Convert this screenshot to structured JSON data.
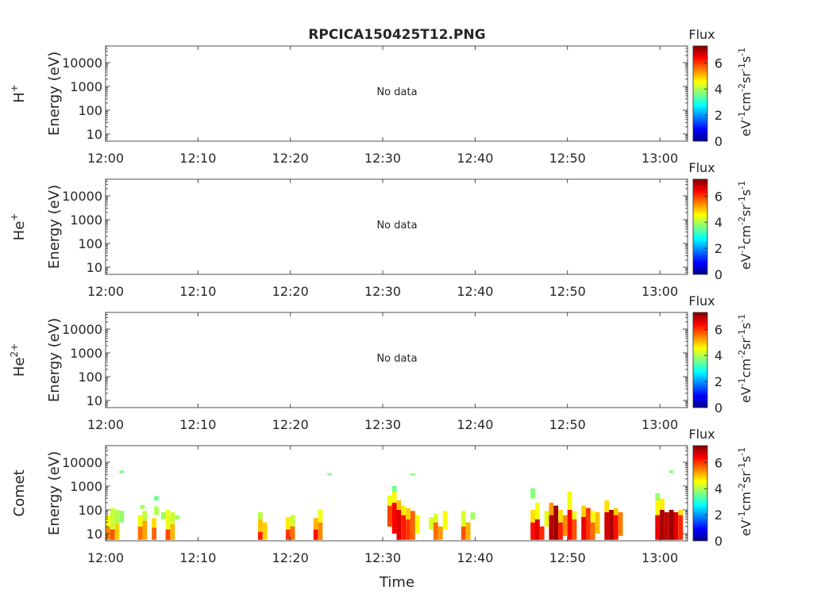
{
  "title": "RPCICA150425T12.PNG",
  "chart_data": [
    {
      "type": "heatmap",
      "panel": "H+",
      "ylabel_species": "H",
      "ylabel_charge": "+",
      "ylabel": "Energy (eV)",
      "yscale": "log",
      "ylim": [
        5,
        50000
      ],
      "yticks": [
        10,
        100,
        1000,
        10000
      ],
      "yticklabels": [
        "10",
        "100",
        "1000",
        "10000"
      ],
      "xlim": [
        "12:00",
        "13:03"
      ],
      "xticklabels": [
        "12:00",
        "12:10",
        "12:20",
        "12:30",
        "12:40",
        "12:50",
        "13:00"
      ],
      "message": "No data",
      "colorbar": {
        "label": "Flux",
        "units": "eV-1cm-2sr-1s-1",
        "range": [
          0,
          7.3
        ],
        "ticklabels": [
          "0",
          "2",
          "4",
          "6"
        ]
      },
      "cells": []
    },
    {
      "type": "heatmap",
      "panel": "He+",
      "ylabel_species": "He",
      "ylabel_charge": "+",
      "ylabel": "Energy (eV)",
      "yscale": "log",
      "ylim": [
        5,
        50000
      ],
      "yticks": [
        10,
        100,
        1000,
        10000
      ],
      "yticklabels": [
        "10",
        "100",
        "1000",
        "10000"
      ],
      "xlim": [
        "12:00",
        "13:03"
      ],
      "xticklabels": [
        "12:00",
        "12:10",
        "12:20",
        "12:30",
        "12:40",
        "12:50",
        "13:00"
      ],
      "message": "No data",
      "colorbar": {
        "label": "Flux",
        "units": "eV-1cm-2sr-1s-1",
        "range": [
          0,
          7.3
        ],
        "ticklabels": [
          "0",
          "2",
          "4",
          "6"
        ]
      },
      "cells": []
    },
    {
      "type": "heatmap",
      "panel": "He2+",
      "ylabel_species": "He",
      "ylabel_charge": "2+",
      "ylabel": "Energy (eV)",
      "yscale": "log",
      "ylim": [
        5,
        50000
      ],
      "yticks": [
        10,
        100,
        1000,
        10000
      ],
      "yticklabels": [
        "10",
        "100",
        "1000",
        "10000"
      ],
      "xlim": [
        "12:00",
        "13:03"
      ],
      "xticklabels": [
        "12:00",
        "12:10",
        "12:20",
        "12:30",
        "12:40",
        "12:50",
        "13:00"
      ],
      "message": "No data",
      "colorbar": {
        "label": "Flux",
        "units": "eV-1cm-2sr-1s-1",
        "range": [
          0,
          7.3
        ],
        "ticklabels": [
          "0",
          "2",
          "4",
          "6"
        ]
      },
      "cells": []
    },
    {
      "type": "heatmap",
      "panel": "Comet",
      "ylabel_species": "Comet",
      "ylabel_charge": "",
      "ylabel": "Energy (eV)",
      "xlabel": "Time",
      "yscale": "log",
      "ylim": [
        5,
        50000
      ],
      "yticks": [
        10,
        100,
        1000,
        10000
      ],
      "yticklabels": [
        "10",
        "100",
        "1000",
        "10000"
      ],
      "xlim": [
        "12:00",
        "13:03"
      ],
      "xticklabels": [
        "12:00",
        "12:10",
        "12:20",
        "12:30",
        "12:40",
        "12:50",
        "13:00"
      ],
      "message": "",
      "colorbar": {
        "label": "Flux",
        "units": "eV-1cm-2sr-1s-1",
        "range": [
          0,
          7.3
        ],
        "ticklabels": [
          "0",
          "2",
          "4",
          "6"
        ]
      },
      "cells": [
        {
          "t0": "12:00",
          "t1": "12:00:30",
          "e0": 5.5,
          "e1": 20,
          "v": 5.4
        },
        {
          "t0": "12:00",
          "t1": "12:00:30",
          "e0": 20,
          "e1": 60,
          "v": 4.6
        },
        {
          "t0": "12:00:30",
          "t1": "12:01",
          "e0": 5.5,
          "e1": 15,
          "v": 5.8
        },
        {
          "t0": "12:00:30",
          "t1": "12:01",
          "e0": 15,
          "e1": 120,
          "v": 4.2
        },
        {
          "t0": "12:01",
          "t1": "12:01:30",
          "e0": 5.5,
          "e1": 25,
          "v": 4.9
        },
        {
          "t0": "12:01",
          "t1": "12:01:30",
          "e0": 25,
          "e1": 100,
          "v": 4.0
        },
        {
          "t0": "12:01:30",
          "t1": "12:02",
          "e0": 30,
          "e1": 90,
          "v": 3.8
        },
        {
          "t0": "12:01:30",
          "t1": "12:02",
          "e0": 3500,
          "e1": 4500,
          "v": 3.6
        },
        {
          "t0": "12:03:30",
          "t1": "12:04",
          "e0": 5.5,
          "e1": 20,
          "v": 5.6
        },
        {
          "t0": "12:03:30",
          "t1": "12:04",
          "e0": 20,
          "e1": 60,
          "v": 4.5
        },
        {
          "t0": "12:04",
          "t1": "12:04:30",
          "e0": 5.5,
          "e1": 35,
          "v": 5.2
        },
        {
          "t0": "12:04",
          "t1": "12:04:30",
          "e0": 35,
          "e1": 90,
          "v": 4.1
        },
        {
          "t0": "12:03:45",
          "t1": "12:04:15",
          "e0": 110,
          "e1": 160,
          "v": 3.9
        },
        {
          "t0": "12:05",
          "t1": "12:05:30",
          "e0": 5.5,
          "e1": 18,
          "v": 5.7
        },
        {
          "t0": "12:05",
          "t1": "12:05:30",
          "e0": 18,
          "e1": 45,
          "v": 4.8
        },
        {
          "t0": "12:05:15",
          "t1": "12:05:45",
          "e0": 60,
          "e1": 140,
          "v": 4.0
        },
        {
          "t0": "12:05:15",
          "t1": "12:05:45",
          "e0": 250,
          "e1": 380,
          "v": 3.5
        },
        {
          "t0": "12:06",
          "t1": "12:06:30",
          "e0": 40,
          "e1": 80,
          "v": 3.9
        },
        {
          "t0": "12:06:30",
          "t1": "12:07",
          "e0": 5.5,
          "e1": 15,
          "v": 5.9
        },
        {
          "t0": "12:06:30",
          "t1": "12:07",
          "e0": 15,
          "e1": 100,
          "v": 4.4
        },
        {
          "t0": "12:07",
          "t1": "12:07:30",
          "e0": 5.5,
          "e1": 25,
          "v": 5.1
        },
        {
          "t0": "12:07",
          "t1": "12:07:30",
          "e0": 25,
          "e1": 80,
          "v": 4.2
        },
        {
          "t0": "12:07:30",
          "t1": "12:08",
          "e0": 40,
          "e1": 60,
          "v": 3.9
        },
        {
          "t0": "12:16:30",
          "t1": "12:17",
          "e0": 5.5,
          "e1": 12,
          "v": 6.2
        },
        {
          "t0": "12:16:30",
          "t1": "12:17",
          "e0": 12,
          "e1": 40,
          "v": 5.0
        },
        {
          "t0": "12:16:30",
          "t1": "12:17",
          "e0": 40,
          "e1": 80,
          "v": 4.1
        },
        {
          "t0": "12:17",
          "t1": "12:17:30",
          "e0": 5.5,
          "e1": 30,
          "v": 4.9
        },
        {
          "t0": "12:19:30",
          "t1": "12:20",
          "e0": 5.5,
          "e1": 15,
          "v": 6.0
        },
        {
          "t0": "12:19:30",
          "t1": "12:20",
          "e0": 15,
          "e1": 50,
          "v": 4.7
        },
        {
          "t0": "12:20",
          "t1": "12:20:30",
          "e0": 5.5,
          "e1": 20,
          "v": 5.6
        },
        {
          "t0": "12:20",
          "t1": "12:20:30",
          "e0": 20,
          "e1": 60,
          "v": 4.2
        },
        {
          "t0": "12:22:30",
          "t1": "12:23",
          "e0": 5.5,
          "e1": 15,
          "v": 6.3
        },
        {
          "t0": "12:22:30",
          "t1": "12:23",
          "e0": 15,
          "e1": 45,
          "v": 5.1
        },
        {
          "t0": "12:23",
          "t1": "12:23:30",
          "e0": 5.5,
          "e1": 30,
          "v": 5.4
        },
        {
          "t0": "12:23",
          "t1": "12:23:30",
          "e0": 30,
          "e1": 100,
          "v": 4.5
        },
        {
          "t0": "12:24",
          "t1": "12:24:30",
          "e0": 2800,
          "e1": 3400,
          "v": 3.6
        },
        {
          "t0": "12:30:30",
          "t1": "12:31",
          "e0": 20,
          "e1": 150,
          "v": 5.9
        },
        {
          "t0": "12:30:30",
          "t1": "12:31",
          "e0": 150,
          "e1": 400,
          "v": 4.4
        },
        {
          "t0": "12:31",
          "t1": "12:31:30",
          "e0": 10,
          "e1": 200,
          "v": 6.4
        },
        {
          "t0": "12:31",
          "t1": "12:31:30",
          "e0": 200,
          "e1": 600,
          "v": 4.6
        },
        {
          "t0": "12:31",
          "t1": "12:31:30",
          "e0": 600,
          "e1": 1000,
          "v": 3.5
        },
        {
          "t0": "12:31:30",
          "t1": "12:32",
          "e0": 5.5,
          "e1": 100,
          "v": 6.6
        },
        {
          "t0": "12:31:30",
          "t1": "12:32",
          "e0": 100,
          "e1": 250,
          "v": 5.0
        },
        {
          "t0": "12:32",
          "t1": "12:32:30",
          "e0": 5.5,
          "e1": 60,
          "v": 6.2
        },
        {
          "t0": "12:32",
          "t1": "12:32:30",
          "e0": 60,
          "e1": 150,
          "v": 4.7
        },
        {
          "t0": "12:32:30",
          "t1": "12:33",
          "e0": 5.5,
          "e1": 40,
          "v": 6.0
        },
        {
          "t0": "12:32:30",
          "t1": "12:33",
          "e0": 40,
          "e1": 120,
          "v": 4.9
        },
        {
          "t0": "12:33",
          "t1": "12:33:30",
          "e0": 5.5,
          "e1": 90,
          "v": 5.7
        },
        {
          "t0": "12:33:30",
          "t1": "12:34",
          "e0": 10,
          "e1": 60,
          "v": 4.6
        },
        {
          "t0": "12:33",
          "t1": "12:33:30",
          "e0": 2800,
          "e1": 3400,
          "v": 3.7
        },
        {
          "t0": "12:35",
          "t1": "12:35:30",
          "e0": 15,
          "e1": 50,
          "v": 4.3
        },
        {
          "t0": "12:35:30",
          "t1": "12:36",
          "e0": 5.5,
          "e1": 30,
          "v": 5.6
        },
        {
          "t0": "12:35:30",
          "t1": "12:36",
          "e0": 30,
          "e1": 70,
          "v": 4.3
        },
        {
          "t0": "12:36",
          "t1": "12:36:30",
          "e0": 5.5,
          "e1": 20,
          "v": 5.3
        },
        {
          "t0": "12:36:30",
          "t1": "12:37",
          "e0": 15,
          "e1": 90,
          "v": 4.5
        },
        {
          "t0": "12:38:30",
          "t1": "12:39",
          "e0": 5.5,
          "e1": 20,
          "v": 5.8
        },
        {
          "t0": "12:38:30",
          "t1": "12:39",
          "e0": 20,
          "e1": 90,
          "v": 4.3
        },
        {
          "t0": "12:39",
          "t1": "12:39:30",
          "e0": 5.5,
          "e1": 30,
          "v": 5.1
        },
        {
          "t0": "12:39:30",
          "t1": "12:40",
          "e0": 40,
          "e1": 80,
          "v": 3.9
        },
        {
          "t0": "12:46",
          "t1": "12:46:30",
          "e0": 5.5,
          "e1": 30,
          "v": 6.3
        },
        {
          "t0": "12:46",
          "t1": "12:46:30",
          "e0": 30,
          "e1": 100,
          "v": 4.8
        },
        {
          "t0": "12:46",
          "t1": "12:46:30",
          "e0": 300,
          "e1": 800,
          "v": 3.7
        },
        {
          "t0": "12:46:30",
          "t1": "12:47",
          "e0": 5.5,
          "e1": 40,
          "v": 6.6
        },
        {
          "t0": "12:46:30",
          "t1": "12:47",
          "e0": 40,
          "e1": 200,
          "v": 4.5
        },
        {
          "t0": "12:47",
          "t1": "12:47:30",
          "e0": 5.5,
          "e1": 20,
          "v": 6.1
        },
        {
          "t0": "12:47:30",
          "t1": "12:48",
          "e0": 20,
          "e1": 90,
          "v": 4.4
        },
        {
          "t0": "12:48",
          "t1": "12:48:30",
          "e0": 5.5,
          "e1": 60,
          "v": 6.9
        },
        {
          "t0": "12:48",
          "t1": "12:48:30",
          "e0": 60,
          "e1": 200,
          "v": 5.3
        },
        {
          "t0": "12:48:30",
          "t1": "12:49",
          "e0": 5.5,
          "e1": 150,
          "v": 7.1
        },
        {
          "t0": "12:49",
          "t1": "12:49:30",
          "e0": 5.5,
          "e1": 30,
          "v": 6.2
        },
        {
          "t0": "12:49",
          "t1": "12:49:30",
          "e0": 30,
          "e1": 100,
          "v": 4.8
        },
        {
          "t0": "12:49:30",
          "t1": "12:50",
          "e0": 8,
          "e1": 60,
          "v": 5.4
        },
        {
          "t0": "12:50",
          "t1": "12:50:30",
          "e0": 5.5,
          "e1": 100,
          "v": 6.4
        },
        {
          "t0": "12:50",
          "t1": "12:50:30",
          "e0": 100,
          "e1": 600,
          "v": 4.5
        },
        {
          "t0": "12:50:30",
          "t1": "12:51",
          "e0": 5.5,
          "e1": 40,
          "v": 5.8
        },
        {
          "t0": "12:50:30",
          "t1": "12:51",
          "e0": 40,
          "e1": 90,
          "v": 4.4
        },
        {
          "t0": "12:51:30",
          "t1": "12:52",
          "e0": 5.5,
          "e1": 50,
          "v": 6.5
        },
        {
          "t0": "12:51:30",
          "t1": "12:52",
          "e0": 50,
          "e1": 150,
          "v": 4.9
        },
        {
          "t0": "12:52",
          "t1": "12:52:30",
          "e0": 5.5,
          "e1": 120,
          "v": 6.0
        },
        {
          "t0": "12:52:30",
          "t1": "12:53",
          "e0": 5.5,
          "e1": 30,
          "v": 5.6
        },
        {
          "t0": "12:52:30",
          "t1": "12:53",
          "e0": 30,
          "e1": 90,
          "v": 4.5
        },
        {
          "t0": "12:53",
          "t1": "12:53:30",
          "e0": 10,
          "e1": 80,
          "v": 5.0
        },
        {
          "t0": "12:54",
          "t1": "12:54:30",
          "e0": 5.5,
          "e1": 80,
          "v": 6.7
        },
        {
          "t0": "12:54",
          "t1": "12:54:30",
          "e0": 80,
          "e1": 250,
          "v": 4.8
        },
        {
          "t0": "12:54:30",
          "t1": "12:55",
          "e0": 5.5,
          "e1": 100,
          "v": 7.0
        },
        {
          "t0": "12:55",
          "t1": "12:55:30",
          "e0": 5.5,
          "e1": 60,
          "v": 6.3
        },
        {
          "t0": "12:55",
          "t1": "12:55:30",
          "e0": 60,
          "e1": 120,
          "v": 4.9
        },
        {
          "t0": "12:55:30",
          "t1": "12:56",
          "e0": 8,
          "e1": 80,
          "v": 5.5
        },
        {
          "t0": "12:59:30",
          "t1": "13:00",
          "e0": 5.5,
          "e1": 60,
          "v": 6.5
        },
        {
          "t0": "12:59:30",
          "t1": "13:00",
          "e0": 60,
          "e1": 250,
          "v": 4.6
        },
        {
          "t0": "12:59:30",
          "t1": "13:00",
          "e0": 250,
          "e1": 500,
          "v": 3.8
        },
        {
          "t0": "13:00",
          "t1": "13:00:30",
          "e0": 5.5,
          "e1": 100,
          "v": 7.0
        },
        {
          "t0": "13:00",
          "t1": "13:00:30",
          "e0": 100,
          "e1": 300,
          "v": 4.7
        },
        {
          "t0": "13:00:30",
          "t1": "13:01",
          "e0": 5.5,
          "e1": 80,
          "v": 6.8
        },
        {
          "t0": "13:01",
          "t1": "13:01:30",
          "e0": 5.5,
          "e1": 100,
          "v": 7.1
        },
        {
          "t0": "13:01:30",
          "t1": "13:02",
          "e0": 5.5,
          "e1": 80,
          "v": 6.6
        },
        {
          "t0": "13:02",
          "t1": "13:02:30",
          "e0": 5.5,
          "e1": 60,
          "v": 6.1
        },
        {
          "t0": "13:02",
          "t1": "13:02:30",
          "e0": 60,
          "e1": 100,
          "v": 4.8
        },
        {
          "t0": "13:01",
          "t1": "13:01:30",
          "e0": 3500,
          "e1": 4500,
          "v": 3.7
        }
      ]
    }
  ]
}
